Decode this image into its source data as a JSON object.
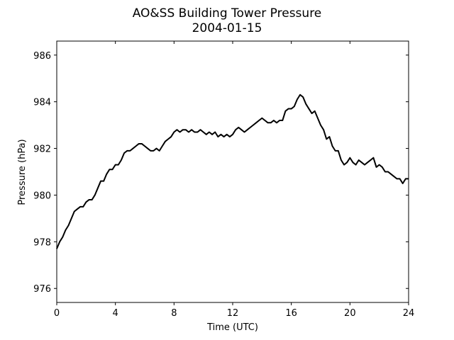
{
  "chart_data": {
    "type": "line",
    "title": "AO&SS Building Tower Pressure",
    "subtitle": "2004-01-15",
    "xlabel": "Time (UTC)",
    "ylabel": "Pressure (hPa)",
    "xlim": [
      0,
      24
    ],
    "ylim": [
      975.4,
      986.6
    ],
    "xticks": [
      0,
      4,
      8,
      12,
      16,
      20,
      24
    ],
    "yticks": [
      976,
      978,
      980,
      982,
      984,
      986
    ],
    "grid": false,
    "line_color": "#000000",
    "series": [
      {
        "x": [
          0,
          0.2,
          0.4,
          0.6,
          0.8,
          1.0,
          1.2,
          1.4,
          1.6,
          1.8,
          2.0,
          2.2,
          2.4,
          2.6,
          2.8,
          3.0,
          3.2,
          3.4,
          3.6,
          3.8,
          4.0,
          4.2,
          4.4,
          4.6,
          4.8,
          5.0,
          5.2,
          5.4,
          5.6,
          5.8,
          6.0,
          6.2,
          6.4,
          6.6,
          6.8,
          7.0,
          7.2,
          7.4,
          7.6,
          7.8,
          8.0,
          8.2,
          8.4,
          8.6,
          8.8,
          9.0,
          9.2,
          9.4,
          9.6,
          9.8,
          10.0,
          10.2,
          10.4,
          10.6,
          10.8,
          11.0,
          11.2,
          11.4,
          11.6,
          11.8,
          12.0,
          12.2,
          12.4,
          12.6,
          12.8,
          13.0,
          13.2,
          13.4,
          13.6,
          13.8,
          14.0,
          14.2,
          14.4,
          14.6,
          14.8,
          15.0,
          15.2,
          15.4,
          15.6,
          15.8,
          16.0,
          16.2,
          16.4,
          16.6,
          16.8,
          17.0,
          17.2,
          17.4,
          17.6,
          17.8,
          18.0,
          18.2,
          18.4,
          18.6,
          18.8,
          19.0,
          19.2,
          19.4,
          19.6,
          19.8,
          20.0,
          20.2,
          20.4,
          20.6,
          20.8,
          21.0,
          21.2,
          21.4,
          21.6,
          21.8,
          22.0,
          22.2,
          22.4,
          22.6,
          22.8,
          23.0,
          23.2,
          23.4,
          23.6,
          23.8,
          24.0
        ],
        "values": [
          977.7,
          978.0,
          978.2,
          978.5,
          978.7,
          979.0,
          979.3,
          979.4,
          979.5,
          979.5,
          979.7,
          979.8,
          979.8,
          980.0,
          980.3,
          980.6,
          980.6,
          980.9,
          981.1,
          981.1,
          981.3,
          981.3,
          981.5,
          981.8,
          981.9,
          981.9,
          982.0,
          982.1,
          982.2,
          982.2,
          982.1,
          982.0,
          981.9,
          981.9,
          982.0,
          981.9,
          982.1,
          982.3,
          982.4,
          982.5,
          982.7,
          982.8,
          982.7,
          982.8,
          982.8,
          982.7,
          982.8,
          982.7,
          982.7,
          982.8,
          982.7,
          982.6,
          982.7,
          982.6,
          982.7,
          982.5,
          982.6,
          982.5,
          982.6,
          982.5,
          982.6,
          982.8,
          982.9,
          982.8,
          982.7,
          982.8,
          982.9,
          983.0,
          983.1,
          983.2,
          983.3,
          983.2,
          983.1,
          983.1,
          983.2,
          983.1,
          983.2,
          983.2,
          983.6,
          983.7,
          983.7,
          983.8,
          984.1,
          984.3,
          984.2,
          983.9,
          983.7,
          983.5,
          983.6,
          983.3,
          983.0,
          982.8,
          982.4,
          982.5,
          982.1,
          981.9,
          981.9,
          981.5,
          981.3,
          981.4,
          981.6,
          981.4,
          981.3,
          981.5,
          981.4,
          981.3,
          981.4,
          981.5,
          981.6,
          981.2,
          981.3,
          981.2,
          981.0,
          981.0,
          980.9,
          980.8,
          980.7,
          980.7,
          980.5,
          980.7,
          980.7
        ]
      }
    ]
  }
}
